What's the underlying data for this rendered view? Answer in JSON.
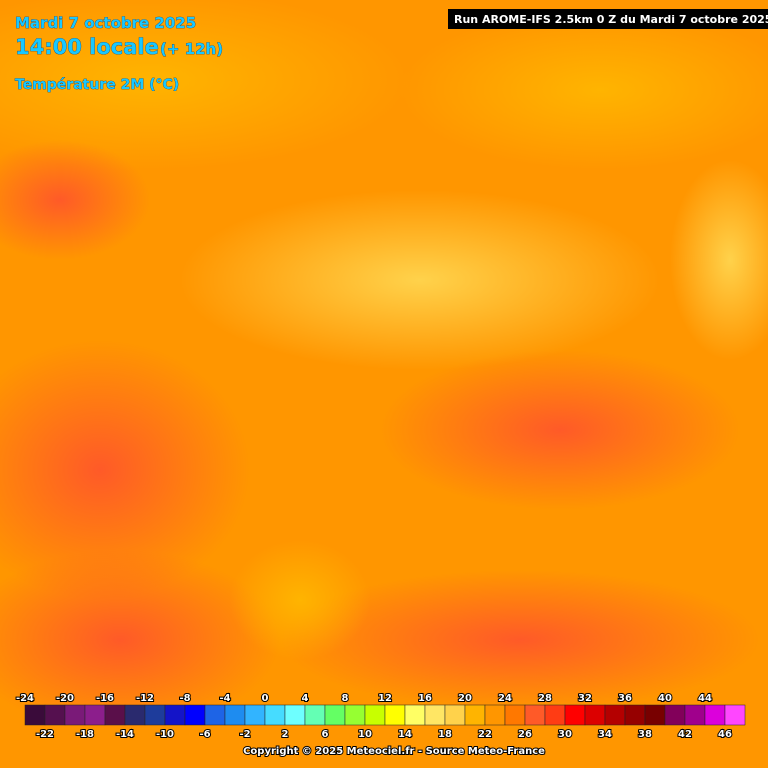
{
  "header": {
    "date": "Mardi 7 octobre 2025",
    "time": "14:00 locale",
    "offset": "(+ 12h)",
    "parameter": "Température 2M (°C)",
    "run": "Run AROME-IFS 2.5km 0 Z du Mardi 7 octobre 2025"
  },
  "scale": {
    "labels_top": [
      -24,
      -20,
      -16,
      -12,
      -8,
      -4,
      0,
      4,
      8,
      12,
      16,
      20,
      24,
      28,
      32,
      36,
      40,
      44
    ],
    "labels_bottom": [
      -22,
      -18,
      -14,
      -10,
      -6,
      -2,
      2,
      6,
      10,
      14,
      18,
      22,
      26,
      30,
      34,
      38,
      42,
      46
    ],
    "colors": [
      "#3a0b3a",
      "#55104f",
      "#7a1a78",
      "#8c1e8c",
      "#5a0f4a",
      "#2a2a6e",
      "#1e3c9b",
      "#1414c8",
      "#0000ff",
      "#1e64e6",
      "#1e8cf0",
      "#32b4ff",
      "#46dcff",
      "#6effff",
      "#64ffb4",
      "#64ff64",
      "#96ff32",
      "#c8ff00",
      "#ffff00",
      "#ffff64",
      "#ffe664",
      "#ffd24b",
      "#ffb400",
      "#ff9600",
      "#ff7800",
      "#ff5a28",
      "#ff3c14",
      "#ff0000",
      "#dc0000",
      "#b40000",
      "#960000",
      "#780000",
      "#82005a",
      "#a0008c",
      "#dc00dc",
      "#ff46ff"
    ]
  },
  "footer": {
    "copyright": "Copyright © 2025 Meteociel.fr - Source Meteo-France"
  }
}
